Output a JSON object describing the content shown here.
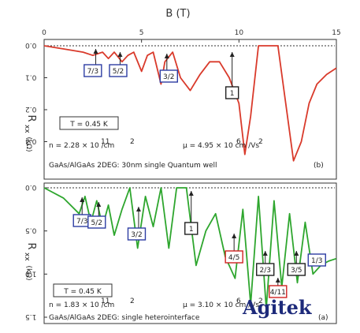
{
  "figure": {
    "xlabel": "B (T)",
    "x_ticks": [
      "0",
      "5",
      "10",
      "15"
    ],
    "watermark": "Agitek"
  },
  "colors": {
    "panel_a": "#d93a2b",
    "panel_b": "#2ea62e",
    "box_blue": "#2d3da3",
    "box_red": "#d02222",
    "box_black": "#222222"
  },
  "panels": [
    {
      "id": "a",
      "ylabel_main": "R",
      "ylabel_sub": "xx",
      "ylabel_unit": "(kΩ)",
      "y_ticks": [
        "0.0",
        "0.1",
        "0.2",
        "0.3"
      ],
      "temperature": "T = 0.45 K",
      "density": "n = 2.28 × 10  /cm",
      "density_sup1": "11",
      "density_sup2": "2",
      "mobility": "μ = 4.95 × 10  cm /Vs",
      "mobility_sup1": "6",
      "mobility_sup2": "2",
      "description": "GaAs/AlGaAs 2DEG: 30nm single Quantum well",
      "panel_label": "(b)",
      "annotations": [
        {
          "text": "7/3",
          "color": "box_blue"
        },
        {
          "text": "5/2",
          "color": "box_blue"
        },
        {
          "text": "3/2",
          "color": "box_blue"
        },
        {
          "text": "1",
          "color": "box_black"
        }
      ]
    },
    {
      "id": "b",
      "ylabel_main": "R",
      "ylabel_sub": "xx",
      "ylabel_unit": "(kΩ)",
      "y_ticks": [
        "0.0",
        "0.5",
        "1.0",
        "1.5"
      ],
      "temperature": "T = 0.45 K",
      "density": "n = 1.83 × 10  /cm",
      "density_sup1": "11",
      "density_sup2": "2",
      "mobility": "μ = 3.10 × 10  cm /Vs",
      "mobility_sup1": "6",
      "mobility_sup2": "2",
      "description": "GaAs/AlGaAs 2DEG: single heterointerface",
      "panel_label": "(a)",
      "annotations": [
        {
          "text": "7/3",
          "color": "box_blue"
        },
        {
          "text": "5/2",
          "color": "box_blue"
        },
        {
          "text": "3/2",
          "color": "box_blue"
        },
        {
          "text": "1",
          "color": "box_black"
        },
        {
          "text": "4/5",
          "color": "box_red"
        },
        {
          "text": "2/3",
          "color": "box_black"
        },
        {
          "text": "4/11",
          "color": "box_red"
        },
        {
          "text": "3/5",
          "color": "box_black"
        },
        {
          "text": "1/3",
          "color": "box_blue"
        }
      ]
    }
  ],
  "chart_data": [
    {
      "type": "line",
      "title": "",
      "xlabel": "B (T)",
      "ylabel": "R_xx (kΩ)",
      "xlim": [
        0,
        15
      ],
      "ylim": [
        0,
        0.4
      ],
      "y_axis_inverted": true,
      "image_rotated_180": true,
      "series": [
        {
          "color": "panel_a",
          "x": [
            0,
            1,
            2,
            2.5,
            3,
            3.3,
            3.6,
            4,
            4.3,
            4.6,
            5,
            5.3,
            5.6,
            6,
            6.2,
            6.6,
            7,
            7.5,
            8,
            8.5,
            9,
            9.5,
            10,
            10.3,
            10.6,
            11,
            12,
            12.4,
            12.8,
            13.2,
            13.6,
            14,
            14.5,
            15
          ],
          "y": [
            0.0,
            0.01,
            0.02,
            0.03,
            0.02,
            0.04,
            0.02,
            0.05,
            0.03,
            0.02,
            0.08,
            0.03,
            0.02,
            0.12,
            0.05,
            0.02,
            0.1,
            0.14,
            0.09,
            0.05,
            0.05,
            0.1,
            0.18,
            0.34,
            0.22,
            0.0,
            0.0,
            0.18,
            0.36,
            0.3,
            0.18,
            0.12,
            0.09,
            0.07
          ]
        }
      ]
    },
    {
      "type": "line",
      "title": "",
      "xlabel": "B (T)",
      "ylabel": "R_xx (kΩ)",
      "xlim": [
        0,
        15
      ],
      "ylim": [
        0,
        1.5
      ],
      "y_axis_inverted": true,
      "image_rotated_180": true,
      "series": [
        {
          "color": "panel_b",
          "x": [
            0,
            1,
            1.8,
            2.1,
            2.4,
            2.7,
            3.0,
            3.3,
            3.6,
            4.0,
            4.4,
            4.8,
            5.2,
            5.6,
            6.0,
            6.4,
            6.8,
            7.3,
            7.8,
            8.3,
            8.8,
            9.3,
            9.8,
            10.2,
            10.6,
            11.0,
            11.4,
            11.8,
            12.2,
            12.6,
            13.0,
            13.4,
            13.8,
            14.2,
            14.6,
            15
          ],
          "y": [
            0.0,
            0.12,
            0.3,
            0.1,
            0.4,
            0.15,
            0.45,
            0.2,
            0.55,
            0.25,
            0.0,
            0.7,
            0.1,
            0.45,
            0.0,
            0.7,
            0.0,
            0.0,
            0.9,
            0.5,
            0.3,
            0.8,
            1.05,
            0.25,
            1.35,
            0.1,
            1.4,
            0.15,
            1.15,
            0.3,
            1.1,
            0.4,
            1.0,
            0.9,
            0.85,
            0.82
          ]
        }
      ]
    }
  ]
}
